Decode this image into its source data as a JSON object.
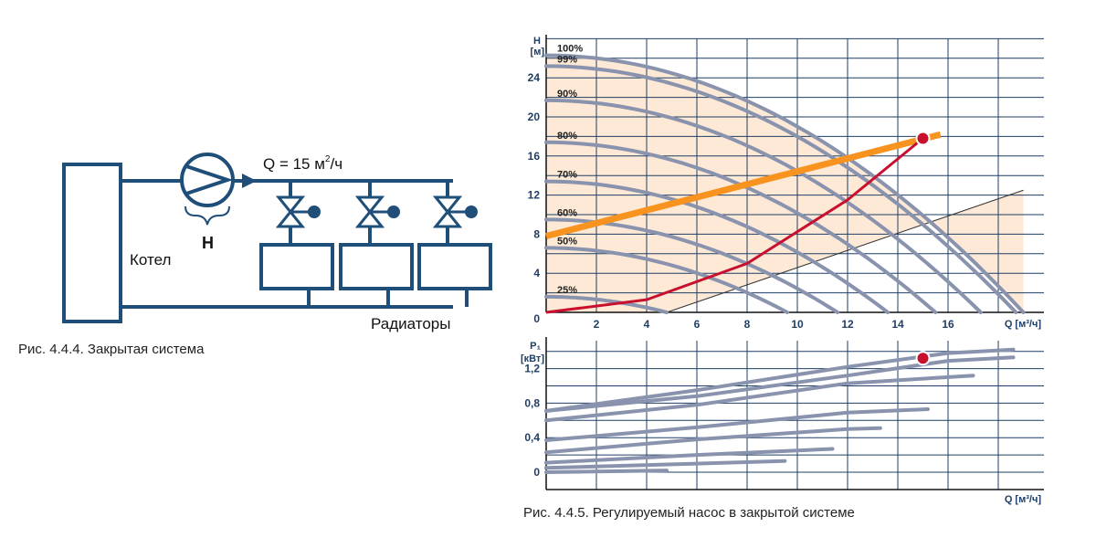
{
  "left": {
    "flow_label": "Q = 15 м",
    "flow_sup": "2",
    "flow_unit": "/ч",
    "head_label": "H",
    "boiler_label": "Котел",
    "radiators_label": "Радиаторы",
    "caption": "Рис. 4.4.4. Закрытая система",
    "valve_count": 3,
    "radiator_count": 3
  },
  "right": {
    "caption": "Рис. 4.4.5. Регулируемый насос в закрытой системе",
    "colors": {
      "curve": "#8a93ad",
      "grid": "#1f3f66",
      "fill": "#fde9d6",
      "system_curve": "#c8102e",
      "control_line": "#f7931e",
      "point": "#c8102e",
      "axis_text": "#1f3f66"
    }
  },
  "chart_data": [
    {
      "type": "line",
      "title": "",
      "ylabel_top": "H",
      "ylabel_unit": "[м]",
      "xlabel": "Q [м³/ч]",
      "xlim": [
        0,
        20
      ],
      "ylim": [
        0,
        28
      ],
      "xticks": [
        "2",
        "4",
        "6",
        "8",
        "10",
        "12",
        "14",
        "16"
      ],
      "yticks": [
        "0",
        "4",
        "8",
        "12",
        "16",
        "20",
        "24"
      ],
      "xtick_values": [
        2,
        4,
        6,
        8,
        10,
        12,
        14,
        16
      ],
      "ytick_values": [
        0,
        4,
        8,
        12,
        16,
        20,
        24
      ],
      "grid": true,
      "series": [
        {
          "label": "100%",
          "H0": 26.3,
          "Qmax": 19.0
        },
        {
          "label": "99%",
          "H0": 25.2,
          "Qmax": 18.7
        },
        {
          "label": "90%",
          "H0": 21.7,
          "Qmax": 17.3
        },
        {
          "label": "80%",
          "H0": 17.4,
          "Qmax": 15.5
        },
        {
          "label": "70%",
          "H0": 13.4,
          "Qmax": 13.6
        },
        {
          "label": "60%",
          "H0": 9.5,
          "Qmax": 11.6
        },
        {
          "label": "50%",
          "H0": 6.6,
          "Qmax": 9.6
        },
        {
          "label": "25%",
          "H0": 1.6,
          "Qmax": 4.8
        }
      ],
      "system_curve": {
        "points": [
          [
            0,
            0
          ],
          [
            4,
            1.3
          ],
          [
            8,
            5
          ],
          [
            12,
            11.5
          ],
          [
            15,
            17.8
          ]
        ]
      },
      "control_line": {
        "points": [
          [
            0,
            7.8
          ],
          [
            15.7,
            18.2
          ]
        ]
      },
      "operating_point": {
        "x": 15,
        "y": 17.8
      }
    },
    {
      "type": "line",
      "title": "",
      "ylabel_top": "P₁",
      "ylabel_unit": "[кВт]",
      "xlabel": "Q [м³/ч]",
      "xlim": [
        0,
        20
      ],
      "ylim": [
        -0.1,
        1.5
      ],
      "yticks": [
        "0",
        "0,4",
        "0,8",
        "1,2"
      ],
      "ytick_values": [
        0,
        0.4,
        0.8,
        1.2
      ],
      "grid": true,
      "series": [
        {
          "points": [
            [
              0,
              0.71
            ],
            [
              6,
              0.95
            ],
            [
              12,
              1.22
            ],
            [
              16,
              1.38
            ],
            [
              18.6,
              1.42
            ]
          ]
        },
        {
          "points": [
            [
              0,
              0.71
            ],
            [
              6,
              0.88
            ],
            [
              12,
              1.12
            ],
            [
              16,
              1.29
            ],
            [
              18.6,
              1.33
            ]
          ]
        },
        {
          "points": [
            [
              0,
              0.6
            ],
            [
              6,
              0.78
            ],
            [
              12,
              1.03
            ],
            [
              17,
              1.12
            ]
          ]
        },
        {
          "points": [
            [
              0,
              0.37
            ],
            [
              6,
              0.52
            ],
            [
              12,
              0.69
            ],
            [
              15.2,
              0.73
            ]
          ]
        },
        {
          "points": [
            [
              0,
              0.23
            ],
            [
              6,
              0.38
            ],
            [
              12,
              0.5
            ],
            [
              13.3,
              0.51
            ]
          ]
        },
        {
          "points": [
            [
              0,
              0.11
            ],
            [
              6,
              0.2
            ],
            [
              11.4,
              0.27
            ]
          ]
        },
        {
          "points": [
            [
              0,
              0.05
            ],
            [
              6,
              0.1
            ],
            [
              9.5,
              0.13
            ]
          ]
        },
        {
          "points": [
            [
              0,
              0.0
            ],
            [
              4.8,
              0.02
            ]
          ]
        }
      ],
      "operating_point": {
        "x": 15,
        "y": 1.32
      }
    }
  ]
}
